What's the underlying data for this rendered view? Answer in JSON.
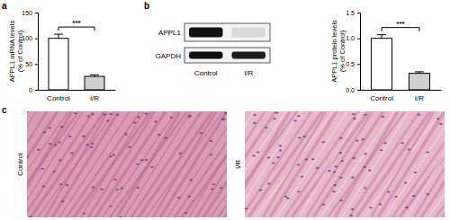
{
  "chart_data": [
    {
      "type": "bar",
      "categories": [
        "Control",
        "I/R"
      ],
      "values": [
        100,
        26
      ],
      "errors": [
        8,
        3
      ],
      "colors": [
        "#ffffff",
        "#d0d0d0"
      ],
      "y_label": [
        "APPL1 mRNA levels",
        "(% of Control)"
      ],
      "ylim": [
        0,
        150
      ],
      "yticks": [
        0,
        50,
        100,
        150
      ],
      "annotation": "***"
    },
    {
      "type": "bar",
      "categories": [
        "Control",
        "I/R"
      ],
      "values": [
        1.0,
        0.32
      ],
      "errors": [
        0.07,
        0.03
      ],
      "colors": [
        "#ffffff",
        "#d0d0d0"
      ],
      "y_label": [
        "APPL1 protein levels",
        "(% of Control)"
      ],
      "ylim": [
        0,
        1.5
      ],
      "yticks": [
        {
          "value": 0,
          "label": "0.0"
        },
        0.5,
        {
          "value": 1,
          "label": "1.0"
        },
        1.5
      ],
      "annotation": "***"
    }
  ],
  "panel_labels": [
    "a",
    "b",
    "c"
  ],
  "blot": {
    "rows": [
      "APPL1",
      "GAPDH"
    ],
    "lanes": [
      "Control",
      "I/R"
    ]
  },
  "histology": {
    "labels": [
      "Control",
      "I/R"
    ]
  }
}
